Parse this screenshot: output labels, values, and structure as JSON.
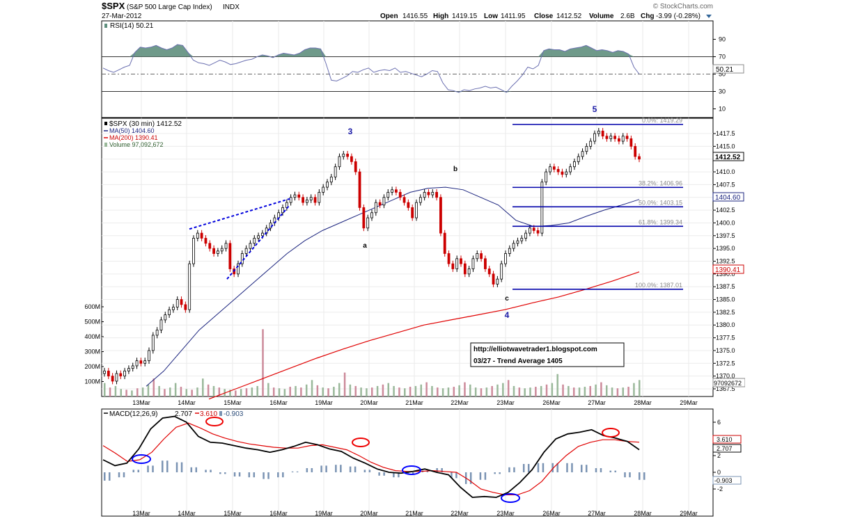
{
  "header": {
    "symbol": "$SPX",
    "name": "(S&P 500 Large Cap Index)",
    "exchange": "INDX",
    "date": "27-Mar-2012",
    "watermark": "© StockCharts.com",
    "quote": {
      "open_label": "Open",
      "open": "1416.55",
      "high_label": "High",
      "high": "1419.15",
      "low_label": "Low",
      "low": "1411.95",
      "close_label": "Close",
      "close": "1412.52",
      "volume_label": "Volume",
      "volume": "2.6B",
      "chg_label": "Chg",
      "chg": "-3.99 (-0.28%)"
    }
  },
  "rsi_panel": {
    "legend": "RSI(14) 50.21",
    "ticks": [
      90,
      70,
      50,
      30,
      10
    ],
    "current_label": "50.21",
    "current": 50.21,
    "upper": 70,
    "lower": 30
  },
  "price_panel": {
    "legend": {
      "symbol": "$SPX (30 min) 1412.52",
      "ma50": "MA(50) 1404.60",
      "ma200": "MA(200) 1390.41",
      "volume": "Volume 97,092,672"
    },
    "yticks": [
      "1417.5",
      "1415.0",
      "1412.5",
      "1410.0",
      "1407.5",
      "1405.0",
      "1402.5",
      "1400.0",
      "1397.5",
      "1395.0",
      "1392.5",
      "1390.0",
      "1387.5",
      "1385.0",
      "1382.5",
      "1380.0",
      "1377.5",
      "1375.0",
      "1372.5",
      "1370.0",
      "1367.5"
    ],
    "ylim": [
      1366,
      1420.5
    ],
    "price_tag": "1412.52",
    "ma50_tag": "1404.60",
    "ma200_tag": "1390.41",
    "volume_tag": "97092672",
    "volume_ticks": [
      "600M",
      "500M",
      "400M",
      "300M",
      "200M",
      "100M"
    ],
    "fib_levels": [
      {
        "label": "0.0%: 1419.29",
        "value": 1419.29
      },
      {
        "label": "38.2%: 1406.96",
        "value": 1406.96
      },
      {
        "label": "50.0%: 1403.15",
        "value": 1403.15
      },
      {
        "label": "61.8%: 1399.34",
        "value": 1399.34
      },
      {
        "label": "100.0%: 1387.01",
        "value": 1387.01
      }
    ],
    "wave_labels": [
      {
        "text": "3",
        "kind": "wave"
      },
      {
        "text": "5",
        "kind": "wave"
      },
      {
        "text": "4",
        "kind": "wave"
      },
      {
        "text": "a",
        "kind": "sub"
      },
      {
        "text": "b",
        "kind": "sub"
      },
      {
        "text": "c",
        "kind": "sub"
      }
    ],
    "note": {
      "line1": "http://elliotwavetrader1.blogspot.com",
      "line2": "03/27 - Trend Average 1405"
    }
  },
  "macd_panel": {
    "legend_name": "MACD(12,26,9)",
    "macd": "2.707",
    "signal": "3.610",
    "hist": "-0.903",
    "ticks": [
      "6",
      "4",
      "2",
      "0",
      "-2"
    ],
    "tags": [
      "3.610",
      "2.707",
      "-0.903"
    ]
  },
  "x_axis": [
    "13Mar",
    "14Mar",
    "15Mar",
    "16Mar",
    "19Mar",
    "20Mar",
    "21Mar",
    "22Mar",
    "23Mar",
    "26Mar",
    "27Mar",
    "28Mar",
    "29Mar"
  ],
  "colors": {
    "up": "#000000",
    "down": "#cc0000",
    "ma50": "#1a237e",
    "ma200": "#e00000",
    "rsi_fill": "#5f8f7d",
    "rsi_line": "#6a6fb0",
    "fib": "#0000aa",
    "trend": "#0000dd",
    "vol_up": "#9ab89a",
    "vol_down": "#cc8a9a",
    "circle_blue": "#0000ff",
    "circle_red": "#ee0000"
  },
  "chart_data": [
    {
      "type": "line",
      "title": "RSI(14)",
      "ylim": [
        0,
        100
      ],
      "x": [
        "13Mar",
        "14Mar",
        "15Mar",
        "16Mar",
        "19Mar",
        "20Mar",
        "21Mar",
        "22Mar",
        "23Mar",
        "26Mar",
        "27Mar",
        "28Mar"
      ],
      "series": [
        {
          "name": "RSI(14)",
          "values": [
            55,
            80,
            64,
            73,
            77,
            44,
            54,
            32,
            34,
            78,
            77,
            50
          ]
        }
      ]
    },
    {
      "type": "line",
      "title": "$SPX (30 min)",
      "x_range": [
        "13Mar",
        "28Mar"
      ],
      "ylim": [
        1366,
        1420.5
      ],
      "series": [
        {
          "name": "$SPX",
          "values": [
            1370.5,
            1369,
            1373.5,
            1380,
            1387,
            1396,
            1398,
            1394,
            1393.5,
            1391,
            1395,
            1398.5,
            1401,
            1403,
            1405,
            1404,
            1406.5,
            1411,
            1413.5,
            1411,
            1401,
            1402,
            1406,
            1406.5,
            1405,
            1403,
            1406,
            1406.5,
            1393,
            1390,
            1391.5,
            1393,
            1390,
            1387.5,
            1393,
            1396.5,
            1398,
            1399.5,
            1410,
            1411,
            1410.5,
            1413.5,
            1417,
            1417,
            1416.5,
            1412.5
          ]
        },
        {
          "name": "MA(50)",
          "values": [
            1368,
            1371,
            1375,
            1379,
            1382,
            1385,
            1388,
            1391,
            1394,
            1396.5,
            1398.5,
            1400,
            1401.5,
            1403,
            1404.5,
            1406,
            1406.8,
            1407,
            1406.5,
            1405,
            1403.5,
            1400.5,
            1399.3,
            1399.5,
            1400,
            1401.3,
            1402.5,
            1403.5,
            1404.6
          ]
        },
        {
          "name": "MA(200)",
          "values": [
            1365.5,
            1367.5,
            1369.5,
            1371.5,
            1373.5,
            1375.3,
            1377,
            1378.5,
            1380,
            1381,
            1382,
            1383,
            1384.3,
            1385.5,
            1387,
            1388.6,
            1390.41
          ]
        }
      ]
    },
    {
      "type": "line",
      "title": "MACD(12,26,9)",
      "ylim": [
        -3.5,
        7
      ],
      "series": [
        {
          "name": "MACD",
          "values": [
            1.5,
            0.8,
            1.1,
            2.8,
            5.2,
            6.5,
            6.7,
            6.0,
            4.3,
            3.6,
            3.5,
            3.2,
            2.9,
            2.7,
            2.4,
            2.7,
            3.1,
            3.6,
            3.3,
            2.8,
            2.5,
            1.7,
            1.1,
            0.4,
            0.0,
            -0.1,
            0.1,
            0.4,
            0.0,
            -0.3,
            -1.8,
            -3.0,
            -2.9,
            -3.0,
            -2.4,
            -1.2,
            0.3,
            2.4,
            4.0,
            4.6,
            4.8,
            5.1,
            4.4,
            4.1,
            3.7,
            2.707
          ]
        },
        {
          "name": "Signal",
          "values": [
            3.2,
            2.3,
            1.3,
            1.5,
            2.4,
            4.0,
            5.4,
            5.9,
            5.3,
            4.6,
            4.1,
            3.7,
            3.4,
            3.2,
            3.0,
            2.9,
            2.9,
            3.2,
            3.3,
            3.0,
            2.7,
            2.0,
            1.2,
            0.6,
            0.2,
            0.1,
            0.1,
            0.2,
            0.1,
            0.0,
            -0.9,
            -2.0,
            -2.4,
            -2.7,
            -2.7,
            -2.2,
            -1.1,
            0.6,
            2.0,
            3.1,
            3.6,
            3.9,
            3.9,
            3.7,
            3.61
          ]
        },
        {
          "name": "Histogram",
          "values": [
            -1.0,
            -0.6,
            0.3,
            0.8,
            1.4,
            1.2,
            0.6,
            0.3,
            -0.2,
            -0.5,
            -0.6,
            -0.8,
            -0.6,
            0.1,
            0.5,
            0.8,
            0.9,
            0.7,
            0.3,
            -0.4,
            -0.6,
            -0.2,
            0.2,
            0.5,
            -0.7,
            -1.4,
            -0.9,
            -0.2,
            0.6,
            1.0,
            1.1,
            1.1,
            1.1,
            0.9,
            0.5,
            0.2,
            -0.6,
            -0.903
          ]
        }
      ]
    }
  ]
}
